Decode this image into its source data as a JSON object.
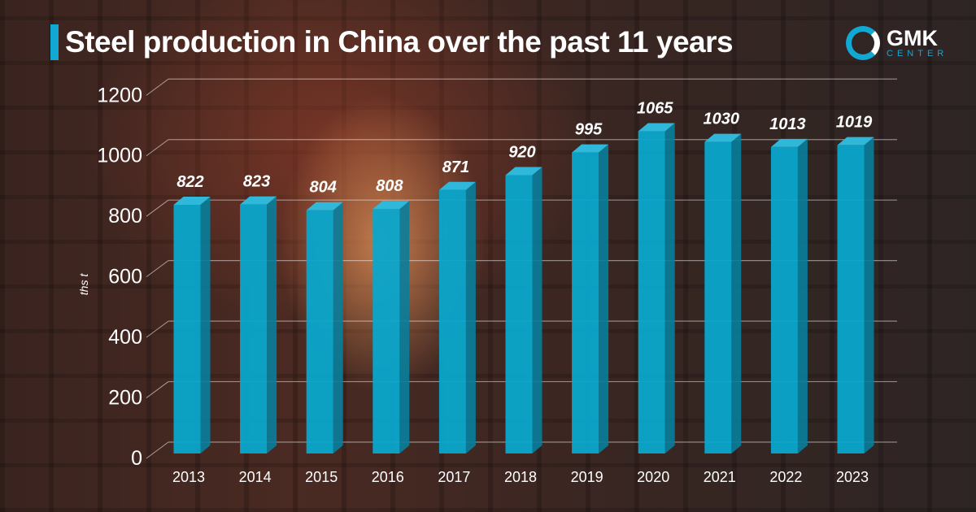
{
  "title": "Steel production in China over the past 11 years",
  "logo": {
    "line1": "GMK",
    "line2": "CENTER"
  },
  "colors": {
    "bar": "#0aa6cc",
    "accent": "#12a8d4"
  },
  "chart_data": {
    "type": "bar",
    "title": "Steel production in China over the past 11 years",
    "ylabel": "ths t",
    "xlabel": "",
    "categories": [
      "2013",
      "2014",
      "2015",
      "2016",
      "2017",
      "2018",
      "2019",
      "2020",
      "2021",
      "2022",
      "2023"
    ],
    "values": [
      822,
      823,
      804,
      808,
      871,
      920,
      995,
      1065,
      1030,
      1013,
      1019
    ],
    "value_labels": [
      "822",
      "823",
      "804",
      "808",
      "871",
      "920",
      "995",
      "1065",
      "1030",
      "1013",
      "1019"
    ],
    "ylim": [
      0,
      1200
    ],
    "yticks": [
      "0",
      "200",
      "400",
      "600",
      "800",
      "1000",
      "1200"
    ],
    "grid": true,
    "style": "3d-column"
  }
}
